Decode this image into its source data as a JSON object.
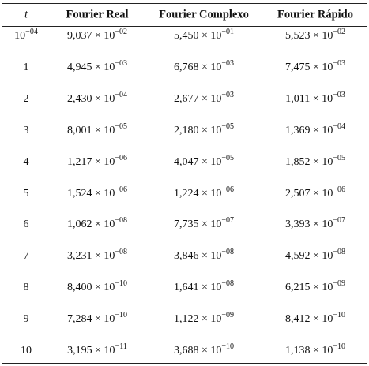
{
  "table": {
    "headers": [
      "t",
      "Fourier Real",
      "Fourier Complexo",
      "Fourier Rápido"
    ],
    "rows": [
      [
        {
          "base": "10",
          "exp": "−04"
        },
        {
          "base": "9,037 × 10",
          "exp": "−02"
        },
        {
          "base": "5,450 × 10",
          "exp": "−01"
        },
        {
          "base": "5,523 × 10",
          "exp": "−02"
        }
      ],
      [
        "1",
        {
          "base": "4,945 × 10",
          "exp": "−03"
        },
        {
          "base": "6,768 × 10",
          "exp": "−03"
        },
        {
          "base": "7,475 × 10",
          "exp": "−03"
        }
      ],
      [
        "2",
        {
          "base": "2,430 × 10",
          "exp": "−04"
        },
        {
          "base": "2,677 × 10",
          "exp": "−03"
        },
        {
          "base": "1,011 × 10",
          "exp": "−03"
        }
      ],
      [
        "3",
        {
          "base": "8,001 × 10",
          "exp": "−05"
        },
        {
          "base": "2,180 × 10",
          "exp": "−05"
        },
        {
          "base": "1,369 × 10",
          "exp": "−04"
        }
      ],
      [
        "4",
        {
          "base": "1,217 × 10",
          "exp": "−06"
        },
        {
          "base": "4,047 × 10",
          "exp": "−05"
        },
        {
          "base": "1,852 × 10",
          "exp": "−05"
        }
      ],
      [
        "5",
        {
          "base": "1,524 × 10",
          "exp": "−06"
        },
        {
          "base": "1,224 × 10",
          "exp": "−06"
        },
        {
          "base": "2,507 × 10",
          "exp": "−06"
        }
      ],
      [
        "6",
        {
          "base": "1,062 × 10",
          "exp": "−08"
        },
        {
          "base": "7,735 × 10",
          "exp": "−07"
        },
        {
          "base": "3,393 × 10",
          "exp": "−07"
        }
      ],
      [
        "7",
        {
          "base": "3,231 × 10",
          "exp": "−08"
        },
        {
          "base": "3,846 × 10",
          "exp": "−08"
        },
        {
          "base": "4,592 × 10",
          "exp": "−08"
        }
      ],
      [
        "8",
        {
          "base": "8,400 × 10",
          "exp": "−10"
        },
        {
          "base": "1,641 × 10",
          "exp": "−08"
        },
        {
          "base": "6,215 × 10",
          "exp": "−09"
        }
      ],
      [
        "9",
        {
          "base": "7,284 × 10",
          "exp": "−10"
        },
        {
          "base": "1,122 × 10",
          "exp": "−09"
        },
        {
          "base": "8,412 × 10",
          "exp": "−10"
        }
      ],
      [
        "10",
        {
          "base": "3,195 × 10",
          "exp": "−11"
        },
        {
          "base": "3,688 × 10",
          "exp": "−10"
        },
        {
          "base": "1,138 × 10",
          "exp": "−10"
        }
      ]
    ]
  }
}
